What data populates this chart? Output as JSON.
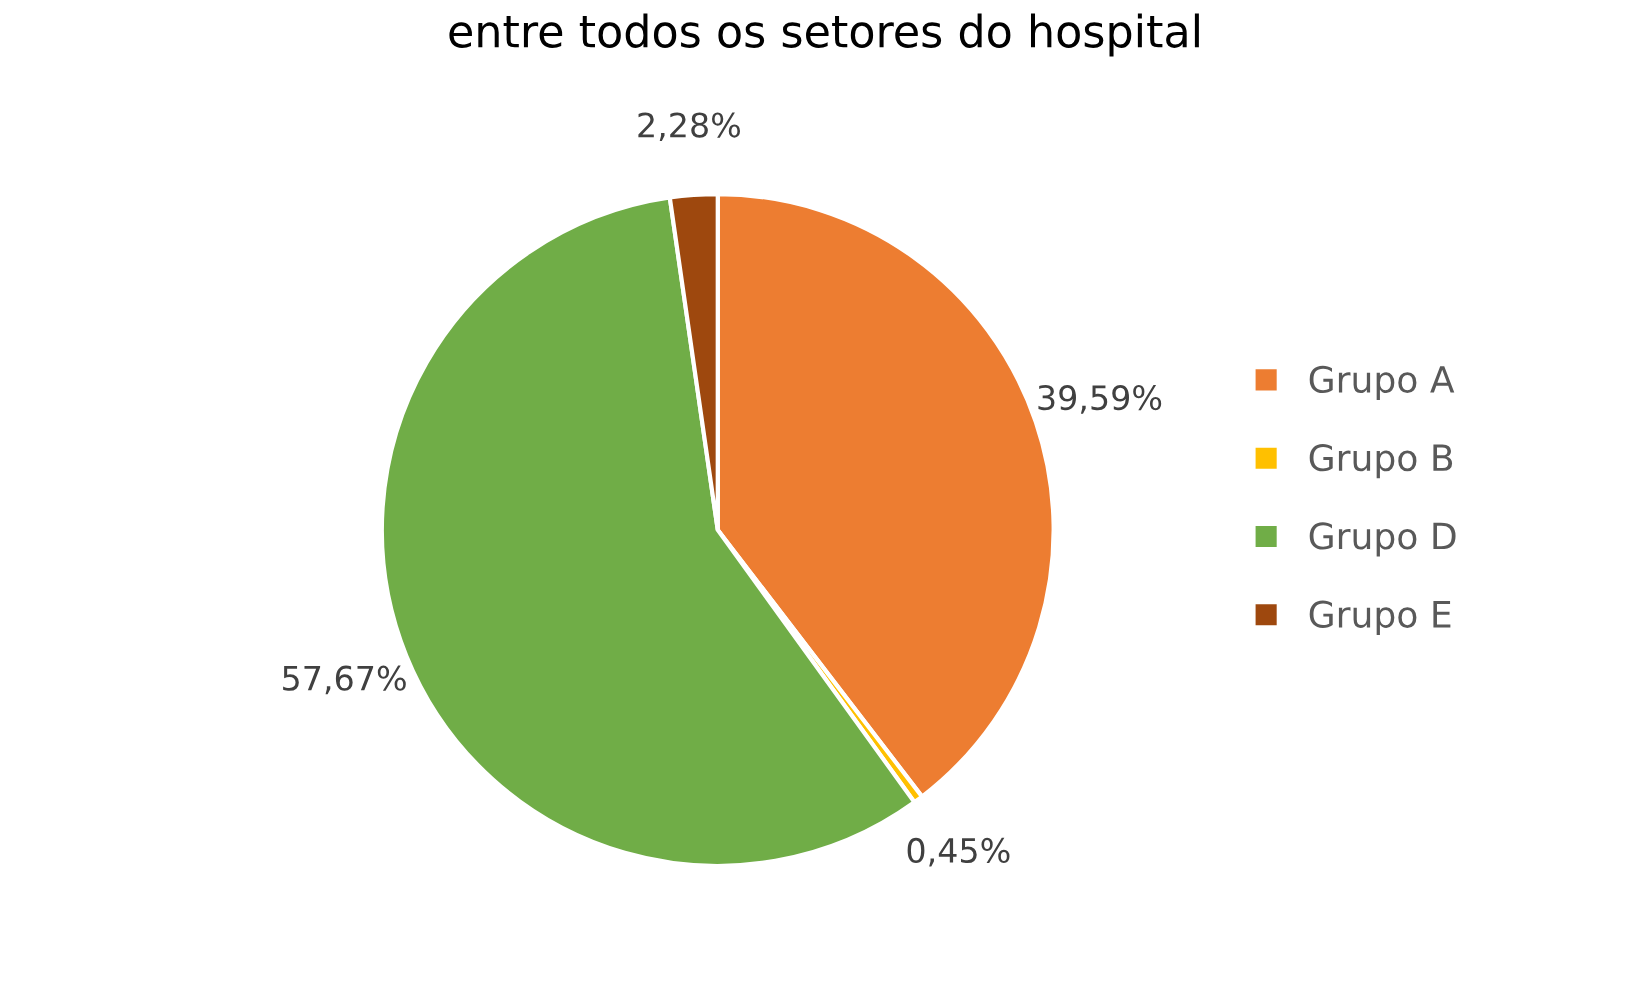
{
  "chart_data": {
    "type": "pie",
    "title": "entre todos os setores do hospital",
    "categories": [
      "Grupo A",
      "Grupo B",
      "Grupo D",
      "Grupo E"
    ],
    "values": [
      39.59,
      0.45,
      57.67,
      2.28
    ],
    "value_labels": [
      "39,59%",
      "0,45%",
      "57,67%",
      "2,28%"
    ],
    "colors": [
      "#ed7d31",
      "#ffc000",
      "#70ad47",
      "#9e480e"
    ],
    "legend": "right"
  }
}
